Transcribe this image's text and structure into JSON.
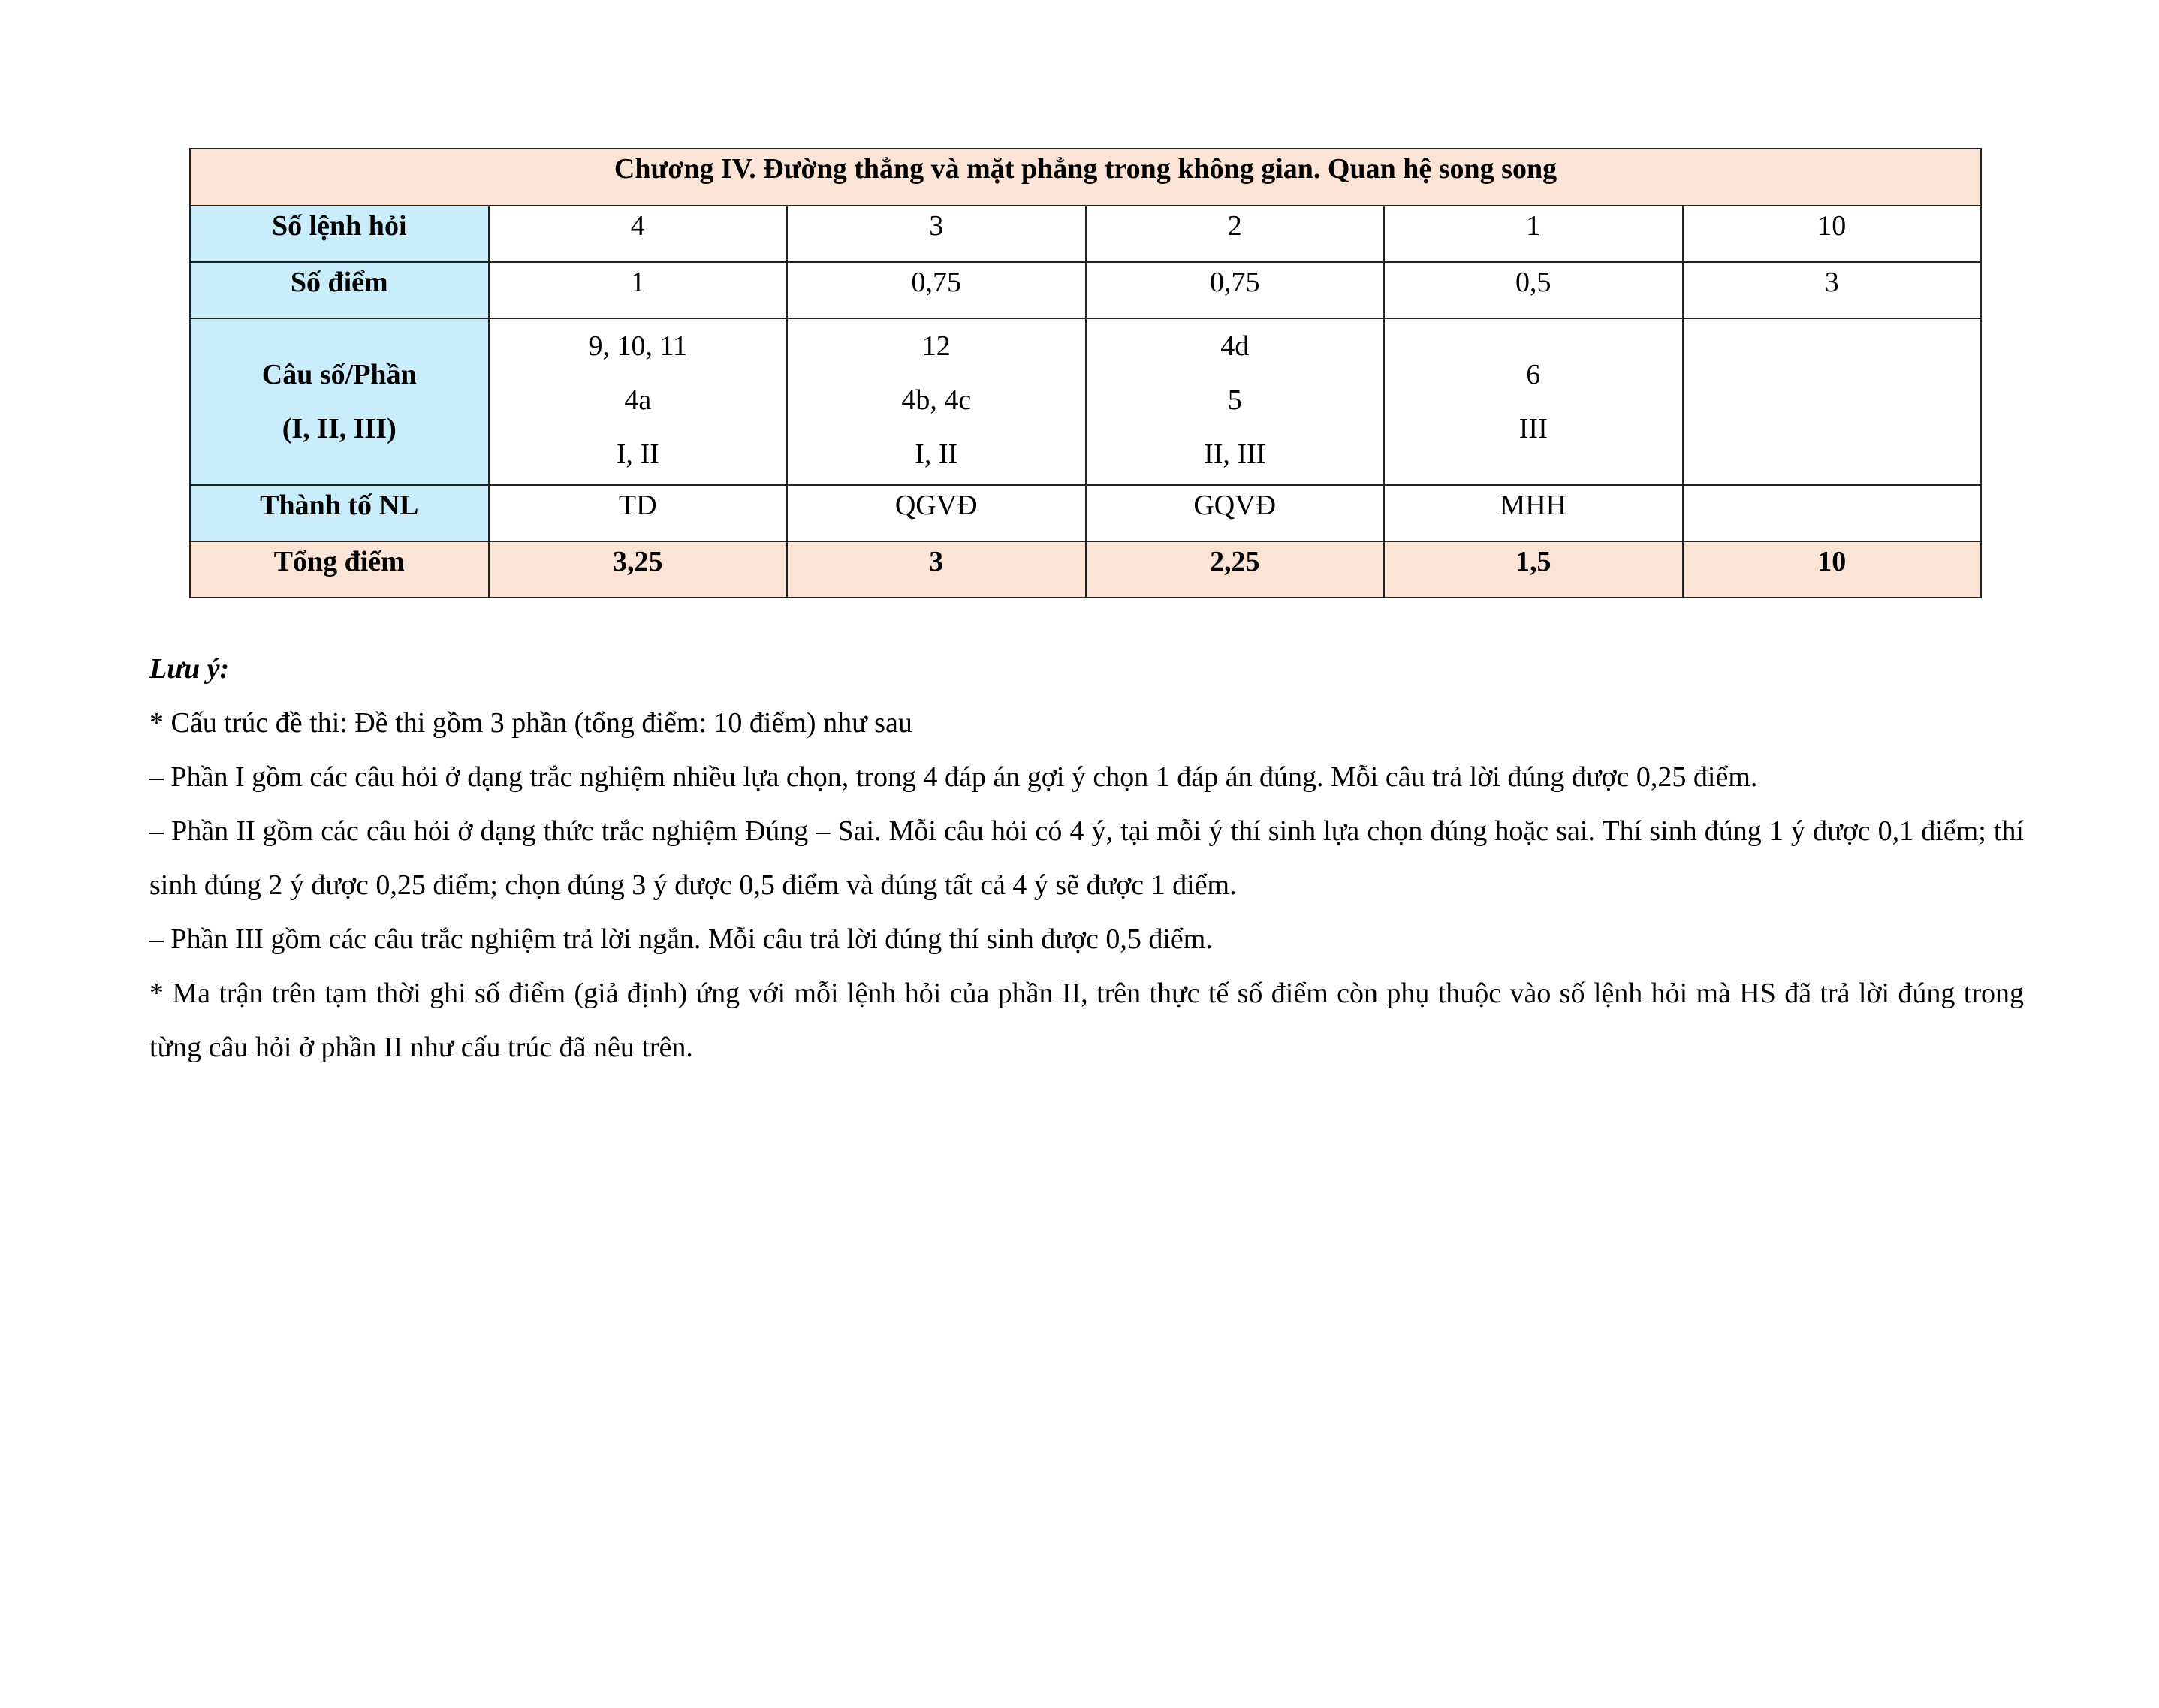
{
  "table": {
    "title": "Chương IV. Đường thẳng và mặt phẳng trong không gian. Quan hệ song song",
    "colors": {
      "header_bg": "#FBE4D5",
      "label_bg": "#C9EDFA"
    },
    "rows": {
      "so_lenh_hoi": {
        "label": "Số lệnh hỏi",
        "values": [
          "4",
          "3",
          "2",
          "1",
          "10"
        ]
      },
      "so_diem": {
        "label": "Số điểm",
        "values": [
          "1",
          "0,75",
          "0,75",
          "0,5",
          "3"
        ]
      },
      "cau_so_phan": {
        "label_line1": "Câu số/Phần",
        "label_line2": "(I, II, III)",
        "values": [
          [
            "9, 10, 11",
            "4a",
            "I, II"
          ],
          [
            "12",
            "4b, 4c",
            "I, II"
          ],
          [
            "4d",
            "5",
            "II, III"
          ],
          [
            "6",
            "III"
          ],
          []
        ]
      },
      "thanh_to_nl": {
        "label": "Thành tố NL",
        "values": [
          "TD",
          "QGVĐ",
          "GQVĐ",
          "MHH",
          ""
        ]
      },
      "tong_diem": {
        "label": "Tổng điểm",
        "values": [
          "3,25",
          "3",
          "2,25",
          "1,5",
          "10"
        ]
      }
    }
  },
  "notes": {
    "heading": "Lưu ý:",
    "paragraphs": [
      "* Cấu trúc đề thi: Đề thi gồm 3 phần (tổng điểm: 10 điểm) như sau",
      "– Phần I gồm các câu hỏi ở dạng trắc nghiệm nhiều lựa chọn, trong 4 đáp án gợi ý chọn 1 đáp án đúng. Mỗi câu trả lời đúng được 0,25 điểm.",
      "– Phần II gồm các câu hỏi ở dạng thức trắc nghiệm Đúng – Sai. Mỗi câu hỏi có 4 ý, tại mỗi ý thí sinh lựa chọn đúng hoặc sai. Thí sinh đúng 1 ý được 0,1 điểm; thí sinh đúng 2 ý được 0,25 điểm; chọn đúng 3 ý được 0,5 điểm và đúng tất cả 4 ý sẽ được 1 điểm.",
      "– Phần III gồm các câu trắc nghiệm trả lời ngắn. Mỗi câu trả lời đúng thí sinh được 0,5 điểm.",
      "* Ma trận trên tạm thời ghi số điểm (giả định) ứng với mỗi lệnh hỏi của phần II, trên thực tế số điểm còn phụ thuộc vào số lệnh hỏi mà HS đã trả lời đúng trong từng câu hỏi ở phần II như cấu trúc đã nêu trên."
    ]
  }
}
